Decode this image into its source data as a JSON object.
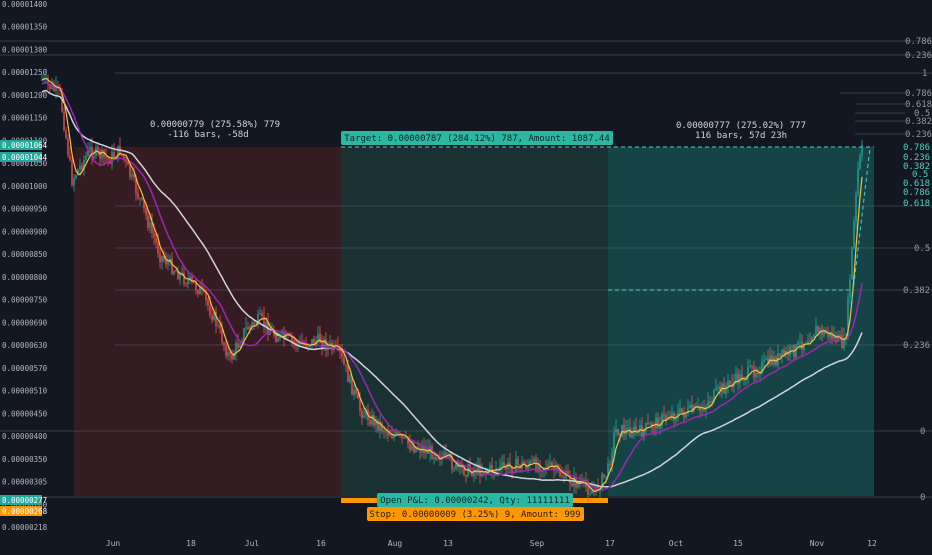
{
  "chart_data": {
    "type": "candlestick",
    "x_ticks": [
      "Jun",
      "18",
      "Jul",
      "16",
      "Aug",
      "13",
      "Sep",
      "17",
      "Oct",
      "15",
      "Nov",
      "12"
    ],
    "y_ticks": [
      "0.00001400",
      "0.00001350",
      "0.00001300",
      "0.00001250",
      "0.00001200",
      "0.00001150",
      "0.00001100",
      "0.00001050",
      "0.00001000",
      "0.00000950",
      "0.00000900",
      "0.00000850",
      "0.00000800",
      "0.00000750",
      "0.00000690",
      "0.00000630",
      "0.00000570",
      "0.00000510",
      "0.00000450",
      "0.00000400",
      "0.00000350",
      "0.00000305",
      "0.00000260",
      "0.00000218"
    ],
    "price_badges": [
      {
        "label": "0.00001064",
        "color": "#26a69a"
      },
      {
        "label": "0.00001044",
        "color": "#26a69a"
      },
      {
        "label": "0.00000277",
        "color": "#26a69a"
      },
      {
        "label": "0.00000268",
        "color": "#ff9800"
      }
    ],
    "fib_upper": [
      "0.786",
      "0.236",
      "1",
      "0.786",
      "0.618",
      "0.5",
      "0.382",
      "0.236"
    ],
    "fib_teal": [
      "0.786",
      "0.236",
      "0.382",
      "0.5",
      "0.618",
      "0.786",
      "0.618"
    ],
    "fib_lower": [
      "0.5",
      "0.382",
      "0.236",
      "0",
      "0"
    ],
    "annotations": {
      "left_measure_1": "0.00000779 (275.58%) 779",
      "left_measure_2": "-116 bars, -58d",
      "right_measure_1": "0.00000777 (275.02%) 777",
      "right_measure_2": "116 bars, 57d 23h",
      "target": "Target: 0.00000787 (284.12%) 787, Amount: 1087.44",
      "open_pnl": "Open P&L: 0.00000242, Qty: 11111111",
      "stop": "Stop: 0.00000009 (3.25%) 9, Amount: 999"
    },
    "colors": {
      "background": "#131722",
      "up": "#26a69a",
      "down": "#ef5350",
      "ma_fast": "#f5c242",
      "ma_mid": "#9c27b0",
      "ma_slow": "#d1d4dc",
      "short_zone": "#3b1d22",
      "long_zone": "#173b3b"
    },
    "grid": false,
    "legend": "none"
  }
}
